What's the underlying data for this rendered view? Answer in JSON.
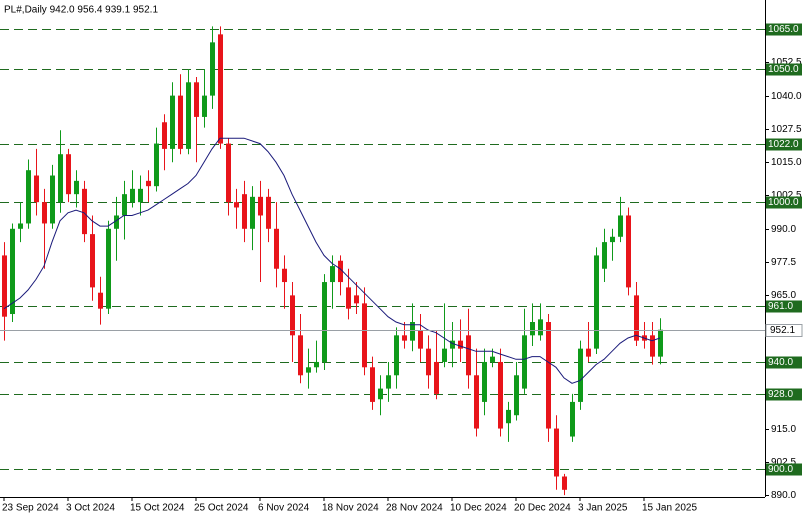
{
  "chart_data": {
    "type": "candlestick",
    "title": "PL#,Daily  942.0 956.4 939.1 952.1",
    "categories": [
      "23 Sep 2024",
      null,
      null,
      null,
      null,
      null,
      null,
      null,
      "3 Oct 2024",
      null,
      null,
      null,
      null,
      null,
      null,
      null,
      "15 Oct 2024",
      null,
      null,
      null,
      null,
      null,
      null,
      null,
      "25 Oct 2024",
      null,
      null,
      null,
      null,
      null,
      null,
      null,
      "6 Nov 2024",
      null,
      null,
      null,
      null,
      null,
      null,
      null,
      "18 Nov 2024",
      null,
      null,
      null,
      null,
      null,
      null,
      null,
      "28 Nov 2024",
      null,
      null,
      null,
      null,
      null,
      null,
      null,
      "10 Dec 2024",
      null,
      null,
      null,
      null,
      null,
      null,
      null,
      "20 Dec 2024",
      null,
      null,
      null,
      null,
      null,
      null,
      null,
      "3 Jan 2025",
      null,
      null,
      null,
      null,
      null,
      null,
      null,
      "15 Jan 2025",
      null,
      null
    ],
    "open": [
      980,
      958,
      990,
      992,
      1010,
      1000,
      992,
      1000,
      1018,
      1003,
      1005,
      988,
      966,
      960,
      990,
      995,
      1000,
      1000,
      1008,
      1006,
      1030,
      1020,
      1040,
      1020,
      1045,
      1032,
      1040,
      1063,
      1022,
      1000,
      1003,
      990,
      1002,
      1002,
      990,
      975,
      965,
      950,
      936,
      938,
      940,
      970,
      978,
      968,
      965,
      962,
      938,
      926,
      930,
      935,
      950,
      948,
      952,
      945,
      940,
      940,
      945,
      948,
      950,
      935,
      925,
      940,
      940,
      917,
      920,
      930,
      950,
      950,
      955,
      915,
      897,
      912,
      925,
      945,
      945,
      975,
      985,
      987,
      995,
      965,
      950,
      950,
      942
    ],
    "high": [
      985,
      992,
      1000,
      1016,
      1020,
      1005,
      1014,
      1027,
      1020,
      1012,
      1008,
      995,
      972,
      993,
      1002,
      1008,
      1012,
      1010,
      1012,
      1028,
      1033,
      1045,
      1048,
      1050,
      1047,
      1050,
      1066,
      1066,
      1024,
      1005,
      1008,
      1006,
      1008,
      1005,
      1000,
      980,
      970,
      958,
      945,
      948,
      973,
      980,
      980,
      975,
      970,
      968,
      942,
      935,
      940,
      953,
      955,
      962,
      958,
      950,
      952,
      962,
      955,
      956,
      960,
      945,
      945,
      945,
      945,
      925,
      940,
      960,
      962,
      962,
      958,
      920,
      898,
      928,
      948,
      955,
      983,
      990,
      990,
      1002,
      998,
      970,
      955,
      955,
      956.4
    ],
    "low": [
      948,
      955,
      985,
      990,
      995,
      975,
      990,
      996,
      1000,
      998,
      985,
      963,
      954,
      958,
      978,
      986,
      998,
      995,
      1000,
      1004,
      1012,
      1015,
      1018,
      1018,
      1015,
      1028,
      1035,
      1020,
      995,
      990,
      985,
      982,
      970,
      985,
      968,
      960,
      940,
      932,
      930,
      936,
      937,
      960,
      965,
      956,
      958,
      935,
      922,
      920,
      925,
      930,
      945,
      944,
      940,
      930,
      926,
      938,
      938,
      940,
      930,
      912,
      920,
      938,
      912,
      910,
      918,
      928,
      946,
      948,
      910,
      892,
      890,
      910,
      922,
      940,
      943,
      970,
      978,
      985,
      965,
      946,
      945,
      939,
      939.1
    ],
    "close": [
      957,
      990,
      992,
      1012,
      1000,
      992,
      1010,
      1018,
      1003,
      1008,
      988,
      968,
      960,
      990,
      995,
      1003,
      1005,
      1005,
      1006,
      1022,
      1020,
      1040,
      1020,
      1045,
      1032,
      1040,
      1060,
      1022,
      1000,
      998,
      990,
      1002,
      995,
      990,
      975,
      970,
      950,
      935,
      938,
      940,
      970,
      976,
      970,
      960,
      962,
      938,
      925,
      930,
      935,
      950,
      948,
      955,
      945,
      935,
      928,
      945,
      948,
      945,
      935,
      915,
      940,
      942,
      915,
      922,
      935,
      950,
      955,
      956,
      915,
      897,
      892,
      925,
      945,
      942,
      980,
      985,
      987,
      995,
      968,
      948,
      948,
      942,
      952.1
    ],
    "up_color": "#0f9a1a",
    "down_color": "#e8141a",
    "ma": {
      "color": "#1a1a7a",
      "values": [
        960,
        962,
        964,
        967,
        971,
        976,
        985,
        993,
        996,
        997,
        996,
        993,
        991,
        991,
        993,
        995,
        995,
        996,
        997,
        999,
        1001,
        1003,
        1005,
        1007,
        1010,
        1015,
        1020,
        1024,
        1024,
        1024,
        1024,
        1023,
        1022,
        1019,
        1015,
        1010,
        1003,
        997,
        991,
        985,
        980,
        977,
        975,
        972,
        969,
        966,
        963,
        960,
        957,
        955,
        954,
        954,
        954,
        952,
        951,
        949,
        947,
        946,
        945,
        944,
        944,
        944,
        943,
        942,
        941,
        941,
        942,
        942,
        940,
        938,
        934,
        932,
        933,
        936,
        939,
        941,
        944,
        947,
        949,
        950,
        949,
        948,
        949
      ]
    },
    "ylim": [
      889.3,
      1075.9
    ],
    "yticks": [
      {
        "value": 890,
        "label": "890.0"
      },
      902.5,
      {
        "value": 915,
        "label": "915.0"
      },
      {
        "value": 965,
        "label": "965.0"
      },
      977.5,
      {
        "value": 990,
        "label": "990.0"
      },
      1002.5,
      {
        "value": 1015,
        "label": "1015.0"
      },
      1027.5,
      {
        "value": 1040,
        "label": "1040.0"
      },
      1052.5
    ],
    "levels": [
      {
        "value": 1065,
        "label": "1065.0"
      },
      {
        "value": 1050,
        "label": "1050.0"
      },
      {
        "value": 1022,
        "label": "1022.0"
      },
      {
        "value": 1000,
        "label": "1000.0"
      },
      {
        "value": 961,
        "label": "961.0"
      },
      {
        "value": 940,
        "label": "940.0"
      },
      {
        "value": 928,
        "label": "928.0"
      },
      {
        "value": 900,
        "label": "900.0"
      }
    ],
    "level_color": "#1f6b1f",
    "last_price": {
      "value": 952.1,
      "label": "952.1"
    }
  }
}
